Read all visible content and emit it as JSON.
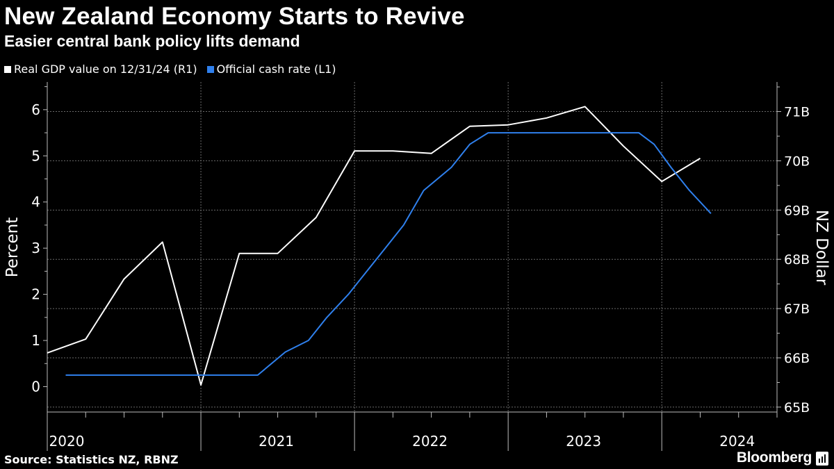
{
  "header": {
    "title": "New Zealand Economy Starts to Revive",
    "subtitle": "Easier central bank policy lifts demand"
  },
  "footer": {
    "source": "Source: Statistics NZ, RBNZ",
    "brand": "Bloomberg"
  },
  "colors": {
    "background": "#000000",
    "gdp_line": "#ffffff",
    "ocr_line": "#2f80ed",
    "grid": "#6b6b6b"
  },
  "chart_data": {
    "type": "line",
    "title": "New Zealand Economy Starts to Revive",
    "subtitle": "Easier central bank policy lifts demand",
    "x_start": 2020.0,
    "x_end": 2024.75,
    "xlim": [
      2020.0,
      2024.75
    ],
    "year_labels": [
      "2020",
      "2021",
      "2022",
      "2023",
      "2024"
    ],
    "year_positions": [
      2020.0,
      2021.0,
      2022.0,
      2023.0,
      2024.0
    ],
    "y_left": {
      "label": "Percent",
      "ylim": [
        -0.55,
        6.6
      ],
      "ticks": [
        0,
        1,
        2,
        3,
        4,
        5,
        6
      ],
      "tick_labels": [
        "0",
        "1",
        "2",
        "3",
        "4",
        "5",
        "6"
      ]
    },
    "y_right": {
      "label": "NZ Dollar",
      "ylim": [
        64.9,
        71.6
      ],
      "ticks": [
        65,
        66,
        67,
        68,
        69,
        70,
        71
      ],
      "tick_labels": [
        "65B",
        "66B",
        "67B",
        "68B",
        "69B",
        "70B",
        "71B"
      ]
    },
    "series": [
      {
        "name": "Real GDP value on 12/31/24 (R1)",
        "axis": "right",
        "color": "#ffffff",
        "points": [
          [
            2020.0,
            66.1
          ],
          [
            2020.25,
            66.38
          ],
          [
            2020.5,
            67.6
          ],
          [
            2020.75,
            68.35
          ],
          [
            2021.0,
            65.45
          ],
          [
            2021.25,
            68.12
          ],
          [
            2021.5,
            68.12
          ],
          [
            2021.75,
            68.85
          ],
          [
            2022.0,
            70.2
          ],
          [
            2022.25,
            70.2
          ],
          [
            2022.5,
            70.15
          ],
          [
            2022.75,
            70.7
          ],
          [
            2023.0,
            70.73
          ],
          [
            2023.25,
            70.87
          ],
          [
            2023.5,
            71.1
          ],
          [
            2023.75,
            70.3
          ],
          [
            2024.0,
            69.58
          ],
          [
            2024.25,
            70.05
          ]
        ]
      },
      {
        "name": "Official cash rate (L1)",
        "axis": "left",
        "color": "#2f80ed",
        "points": [
          [
            2020.12,
            0.25
          ],
          [
            2021.37,
            0.25
          ],
          [
            2021.55,
            0.75
          ],
          [
            2021.7,
            1.0
          ],
          [
            2021.82,
            1.5
          ],
          [
            2021.96,
            2.0
          ],
          [
            2022.08,
            2.5
          ],
          [
            2022.2,
            3.0
          ],
          [
            2022.32,
            3.5
          ],
          [
            2022.45,
            4.25
          ],
          [
            2022.63,
            4.75
          ],
          [
            2022.75,
            5.25
          ],
          [
            2022.87,
            5.5
          ],
          [
            2023.85,
            5.5
          ],
          [
            2023.95,
            5.25
          ],
          [
            2024.06,
            4.75
          ],
          [
            2024.18,
            4.25
          ],
          [
            2024.32,
            3.75
          ]
        ]
      }
    ]
  }
}
